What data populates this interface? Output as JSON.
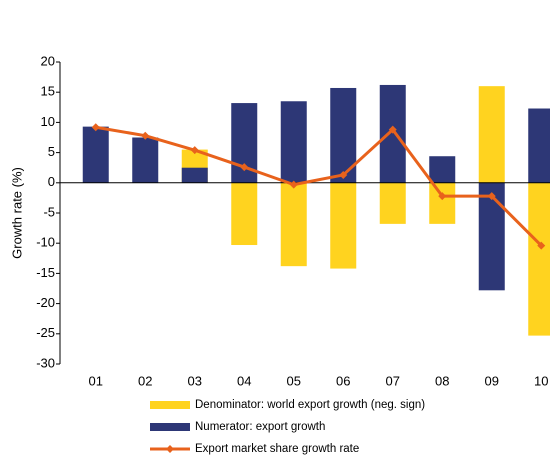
{
  "chart_data": {
    "type": "bar-line",
    "y_label": "Growth rate (%)",
    "categories": [
      "01",
      "02",
      "03",
      "04",
      "05",
      "06",
      "07",
      "08",
      "09",
      "10"
    ],
    "series": [
      {
        "name": "Denominator: world export growth (neg. sign)",
        "type": "bar",
        "color": "#ffd31f",
        "values": [
          null,
          null,
          5.5,
          -10.3,
          -13.8,
          -14.2,
          -6.8,
          -6.8,
          16,
          -25.3
        ]
      },
      {
        "name": "Numerator: export growth",
        "type": "bar",
        "color": "#2d3776",
        "values": [
          9.3,
          7.5,
          2.5,
          13.2,
          13.5,
          15.7,
          16.2,
          4.4,
          -17.8,
          12.3
        ]
      },
      {
        "name": "Export market share growth rate",
        "type": "line",
        "color": "#e8621c",
        "values": [
          9.2,
          7.8,
          5.4,
          2.6,
          -0.3,
          1.3,
          8.8,
          -2.2,
          -2.2,
          -10.4
        ]
      }
    ],
    "ylim": [
      -30,
      20
    ],
    "yticks": [
      -30,
      -25,
      -20,
      -15,
      -10,
      -5,
      0,
      5,
      10,
      15,
      20
    ]
  }
}
